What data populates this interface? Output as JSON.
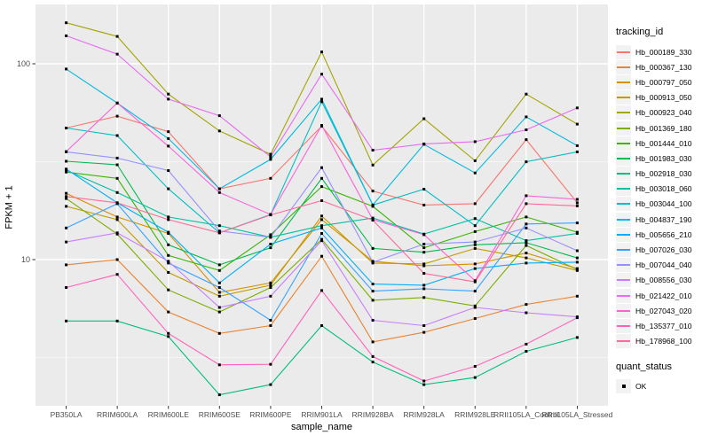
{
  "chart_data": {
    "type": "line",
    "title": "",
    "xlabel": "sample_name",
    "ylabel": "FPKM + 1",
    "y_scale": "log10",
    "y_ticks": [
      10,
      100
    ],
    "y_minor_ticks": [
      3.162,
      31.62
    ],
    "ylim": [
      1.8,
      190
    ],
    "grid": true,
    "legend_position": "right",
    "x_categories": [
      "PB350LA",
      "RRIM600LA",
      "RRIM600LE",
      "RRIM600SE",
      "RRIM600PE",
      "RRIM901LA",
      "RRIM928BA",
      "RRIM928LA",
      "RRIM928LE",
      "RRII105LA_Control",
      "RRII105LA_Stressed"
    ],
    "series": [
      {
        "name": "Hb_000189_330",
        "color": "#F8766D",
        "values": [
          47,
          54,
          45,
          23,
          26,
          48,
          22.4,
          19,
          19.3,
          41,
          19.5
        ]
      },
      {
        "name": "Hb_000367_130",
        "color": "#EA8331",
        "values": [
          9.4,
          10,
          5.4,
          4.2,
          4.6,
          10.4,
          3.8,
          4.25,
          5.0,
          5.9,
          6.5
        ]
      },
      {
        "name": "Hb_000797_050",
        "color": "#D89000",
        "values": [
          21.8,
          16.5,
          13.6,
          6.8,
          7.6,
          16,
          9.8,
          9.3,
          9.5,
          10.8,
          9.0
        ]
      },
      {
        "name": "Hb_000913_050",
        "color": "#C09B00",
        "values": [
          18.7,
          16,
          8.6,
          6.5,
          7.4,
          16.7,
          9.6,
          9.5,
          11.4,
          10.2,
          8.8
        ]
      },
      {
        "name": "Hb_000923_040",
        "color": "#A3A500",
        "values": [
          162,
          138,
          70,
          45.4,
          34.5,
          115,
          30.4,
          52.4,
          32,
          70,
          49.2
        ]
      },
      {
        "name": "Hb_001369_180",
        "color": "#7CAE00",
        "values": [
          20.5,
          13.5,
          7.0,
          5.4,
          7.2,
          12.7,
          6.2,
          6.4,
          5.8,
          11.8,
          8.9
        ]
      },
      {
        "name": "Hb_001444_010",
        "color": "#39B600",
        "values": [
          28,
          26,
          10.5,
          8.8,
          13.4,
          23.6,
          18.7,
          11.5,
          13.9,
          16.5,
          13.8
        ]
      },
      {
        "name": "Hb_001983_030",
        "color": "#00BB4E",
        "values": [
          31.8,
          30.5,
          11.9,
          9.4,
          11.5,
          26,
          11.4,
          10.9,
          11.9,
          12.2,
          10.2
        ]
      },
      {
        "name": "Hb_002918_030",
        "color": "#00BF7D",
        "values": [
          4.86,
          4.86,
          4.05,
          2.04,
          2.3,
          4.6,
          3.0,
          2.3,
          2.5,
          3.4,
          4.0
        ]
      },
      {
        "name": "Hb_003018_060",
        "color": "#00C1A3",
        "values": [
          28.6,
          22,
          16.5,
          14.9,
          13,
          14.9,
          16.3,
          13.5,
          16.2,
          12.5,
          13.6
        ]
      },
      {
        "name": "Hb_003044_100",
        "color": "#00BFC4",
        "values": [
          47,
          43,
          23,
          13.7,
          17,
          64,
          19,
          22.9,
          14.9,
          31.6,
          35.5
        ]
      },
      {
        "name": "Hb_004837_190",
        "color": "#00BAE0",
        "values": [
          94,
          63,
          41.5,
          23,
          32.5,
          66,
          19,
          38.8,
          27.7,
          53.6,
          38.2
        ]
      },
      {
        "name": "Hb_005656_210",
        "color": "#00B0F6",
        "values": [
          29,
          19.5,
          13.8,
          7.6,
          12,
          14.5,
          7.5,
          7.4,
          9.0,
          9.6,
          9.7
        ]
      },
      {
        "name": "Hb_007026_030",
        "color": "#35A2FF",
        "values": [
          14.5,
          19.3,
          9.6,
          7.2,
          4.9,
          13.6,
          6.9,
          7.1,
          6.9,
          15.2,
          15.4
        ]
      },
      {
        "name": "Hb_007044_040",
        "color": "#9590FF",
        "values": [
          35.5,
          33,
          28.5,
          14,
          13,
          29.5,
          9.7,
          12,
          12.3,
          14.5,
          11.1
        ]
      },
      {
        "name": "Hb_008556_030",
        "color": "#C77CFF",
        "values": [
          12.3,
          13.7,
          9.8,
          5.7,
          6.5,
          12.5,
          4.9,
          4.6,
          5.7,
          5.35,
          5.1
        ]
      },
      {
        "name": "Hb_021422_010",
        "color": "#E76BF3",
        "values": [
          139,
          112,
          66,
          54.3,
          33.5,
          88.5,
          36.2,
          39,
          40,
          46,
          59.5
        ]
      },
      {
        "name": "Hb_027043_020",
        "color": "#FA62DB",
        "values": [
          35.6,
          63,
          38,
          22,
          17,
          48.5,
          16,
          13.4,
          7.8,
          21.2,
          20.3
        ]
      },
      {
        "name": "Hb_135377_010",
        "color": "#FF62BC",
        "values": [
          7.2,
          8.4,
          4.2,
          2.9,
          2.92,
          6.95,
          3.2,
          2.4,
          2.85,
          3.7,
          5.05
        ]
      },
      {
        "name": "Hb_178968_100",
        "color": "#FF6A98",
        "values": [
          21,
          19.5,
          16,
          13.7,
          16.9,
          20,
          15.9,
          8.5,
          7.7,
          19.3,
          18.8
        ]
      }
    ],
    "legend": {
      "series_title": "tracking_id",
      "status_title": "quant_status",
      "status_items": [
        {
          "label": "OK",
          "shape": "square",
          "color": "#000000"
        }
      ]
    },
    "colors": {
      "panel_bg": "#EBEBEB",
      "grid_major": "#FFFFFF",
      "grid_minor": "#F5F5F5",
      "axis_text": "#4D4D4D",
      "tick_mark": "#333333",
      "point": "#000000",
      "legend_key_bg": "#F2F2F2"
    }
  }
}
